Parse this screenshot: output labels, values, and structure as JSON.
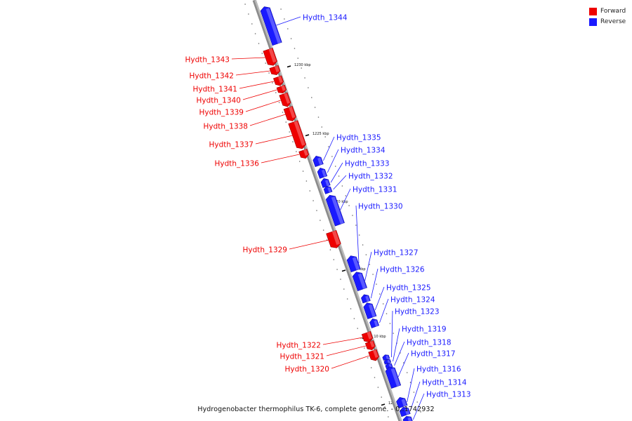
{
  "legend": {
    "forward_label": "Forward",
    "reverse_label": "Reverse",
    "forward_color": "#ee0000",
    "reverse_color": "#1a1aff"
  },
  "caption": "Hydrogenobacter thermophilus TK-6, complete genome. - 0..1742932",
  "scale_ticks": [
    {
      "label": "1230 kbp",
      "kbp": 1230
    },
    {
      "label": "1225 kbp",
      "kbp": 1225
    },
    {
      "label": "1220 kbp",
      "kbp": 1220
    },
    {
      "label": "1215 kbp",
      "kbp": 1215
    },
    {
      "label": "1210 kbp",
      "kbp": 1210
    },
    {
      "label": "1205 kbp",
      "kbp": 1205
    }
  ],
  "forward_genes": [
    "Hydth_1343",
    "Hydth_1342",
    "Hydth_1341",
    "Hydth_1340",
    "Hydth_1339",
    "Hydth_1338",
    "Hydth_1337",
    "Hydth_1336",
    "Hydth_1329",
    "Hydth_1322",
    "Hydth_1321",
    "Hydth_1320"
  ],
  "reverse_genes": [
    "Hydth_1344",
    "Hydth_1335",
    "Hydth_1334",
    "Hydth_1333",
    "Hydth_1332",
    "Hydth_1331",
    "Hydth_1330",
    "Hydth_1327",
    "Hydth_1326",
    "Hydth_1325",
    "Hydth_1324",
    "Hydth_1323",
    "Hydth_1319",
    "Hydth_1318",
    "Hydth_1317",
    "Hydth_1316",
    "Hydth_1314",
    "Hydth_1313"
  ]
}
